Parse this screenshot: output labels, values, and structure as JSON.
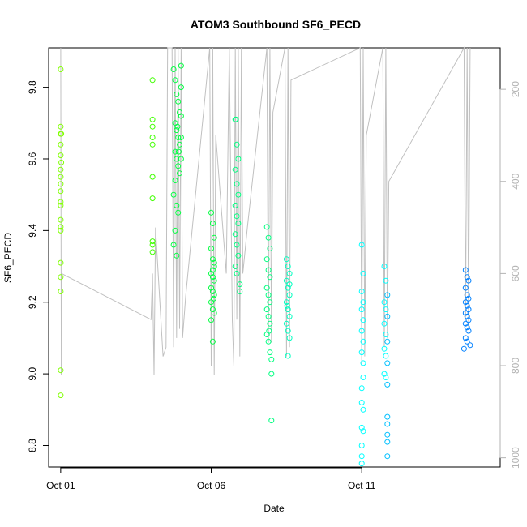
{
  "chart_data": {
    "type": "scatter",
    "title": "ATOM3 Southbound SF6_PECD",
    "xlabel": "Date",
    "ylabel": "SF6_PECD",
    "x_ticks": [
      {
        "day": 1,
        "label": "Oct 01"
      },
      {
        "day": 6,
        "label": "Oct 06"
      },
      {
        "day": 11,
        "label": "Oct 11"
      }
    ],
    "xlim_days": [
      0.6,
      15.6
    ],
    "ylim": [
      8.74,
      9.91
    ],
    "y_ticks": [
      "8.8",
      "9.0",
      "9.2",
      "9.4",
      "9.6",
      "9.8"
    ],
    "y2_ticks": [
      "200",
      "400",
      "600",
      "800",
      "1000"
    ],
    "y2lim": [
      1020,
      110
    ],
    "grid": false,
    "legend": "none",
    "colors": {
      "line": "#c0c0c0",
      "axis": "#000000",
      "right_axis": "#b3b3b3",
      "point_palette": [
        "#80ff00",
        "#40ff00",
        "#00ff40",
        "#00ff80",
        "#00ffc0",
        "#00ffff",
        "#00c0ff",
        "#0080ff"
      ]
    },
    "points": [
      [
        1.0,
        9.85
      ],
      [
        1.0,
        9.69
      ],
      [
        1.0,
        9.67
      ],
      [
        1.0,
        9.64
      ],
      [
        1.0,
        9.61
      ],
      [
        1.0,
        9.57
      ],
      [
        1.0,
        9.55
      ],
      [
        1.0,
        9.53
      ],
      [
        1.0,
        9.51
      ],
      [
        1.0,
        9.48
      ],
      [
        1.0,
        9.47
      ],
      [
        1.0,
        9.43
      ],
      [
        1.0,
        9.41
      ],
      [
        1.0,
        9.4
      ],
      [
        1.0,
        9.31
      ],
      [
        1.0,
        9.27
      ],
      [
        1.0,
        9.23
      ],
      [
        1.0,
        9.01
      ],
      [
        1.0,
        8.94
      ],
      [
        1.02,
        9.67
      ],
      [
        1.02,
        9.59
      ],
      [
        4.05,
        9.82
      ],
      [
        4.05,
        9.71
      ],
      [
        4.05,
        9.69
      ],
      [
        4.05,
        9.66
      ],
      [
        4.05,
        9.64
      ],
      [
        4.05,
        9.55
      ],
      [
        4.05,
        9.49
      ],
      [
        4.05,
        9.37
      ],
      [
        4.05,
        9.36
      ],
      [
        4.05,
        9.34
      ],
      [
        4.75,
        9.85
      ],
      [
        4.8,
        9.82
      ],
      [
        4.85,
        9.78
      ],
      [
        4.9,
        9.76
      ],
      [
        4.95,
        9.73
      ],
      [
        4.8,
        9.7
      ],
      [
        4.85,
        9.68
      ],
      [
        4.9,
        9.66
      ],
      [
        4.95,
        9.64
      ],
      [
        4.8,
        9.62
      ],
      [
        4.85,
        9.6
      ],
      [
        4.9,
        9.58
      ],
      [
        4.95,
        9.56
      ],
      [
        4.8,
        9.54
      ],
      [
        4.75,
        9.5
      ],
      [
        4.85,
        9.47
      ],
      [
        4.9,
        9.45
      ],
      [
        4.8,
        9.4
      ],
      [
        4.75,
        9.36
      ],
      [
        4.85,
        9.33
      ],
      [
        5.0,
        9.86
      ],
      [
        5.0,
        9.8
      ],
      [
        5.0,
        9.72
      ],
      [
        5.0,
        9.66
      ],
      [
        5.0,
        9.6
      ],
      [
        4.92,
        9.62
      ],
      [
        4.88,
        9.69
      ],
      [
        6.0,
        9.45
      ],
      [
        6.05,
        9.42
      ],
      [
        6.1,
        9.38
      ],
      [
        6.0,
        9.35
      ],
      [
        6.05,
        9.32
      ],
      [
        6.1,
        9.3
      ],
      [
        6.0,
        9.28
      ],
      [
        6.05,
        9.27
      ],
      [
        6.1,
        9.26
      ],
      [
        6.0,
        9.24
      ],
      [
        6.05,
        9.23
      ],
      [
        6.1,
        9.22
      ],
      [
        6.0,
        9.2
      ],
      [
        6.05,
        9.18
      ],
      [
        6.1,
        9.17
      ],
      [
        6.0,
        9.15
      ],
      [
        6.05,
        9.29
      ],
      [
        6.1,
        9.31
      ],
      [
        6.05,
        9.09
      ],
      [
        6.08,
        9.21
      ],
      [
        6.8,
        9.71
      ],
      [
        6.85,
        9.64
      ],
      [
        6.9,
        9.6
      ],
      [
        6.8,
        9.57
      ],
      [
        6.85,
        9.53
      ],
      [
        6.9,
        9.5
      ],
      [
        6.8,
        9.47
      ],
      [
        6.85,
        9.44
      ],
      [
        6.9,
        9.42
      ],
      [
        6.8,
        9.39
      ],
      [
        6.85,
        9.36
      ],
      [
        6.9,
        9.33
      ],
      [
        6.8,
        9.3
      ],
      [
        6.85,
        9.28
      ],
      [
        6.95,
        9.25
      ],
      [
        6.95,
        9.23
      ],
      [
        6.82,
        9.71
      ],
      [
        7.85,
        9.41
      ],
      [
        7.9,
        9.38
      ],
      [
        7.95,
        9.35
      ],
      [
        7.85,
        9.32
      ],
      [
        7.9,
        9.29
      ],
      [
        7.95,
        9.27
      ],
      [
        7.85,
        9.24
      ],
      [
        7.9,
        9.22
      ],
      [
        7.95,
        9.2
      ],
      [
        7.85,
        9.18
      ],
      [
        7.9,
        9.16
      ],
      [
        7.95,
        9.14
      ],
      [
        7.85,
        9.11
      ],
      [
        7.9,
        9.09
      ],
      [
        7.95,
        9.06
      ],
      [
        8.0,
        9.04
      ],
      [
        8.0,
        9.0
      ],
      [
        8.0,
        8.87
      ],
      [
        7.92,
        9.12
      ],
      [
        8.5,
        9.32
      ],
      [
        8.55,
        9.3
      ],
      [
        8.6,
        9.28
      ],
      [
        8.5,
        9.26
      ],
      [
        8.55,
        9.24
      ],
      [
        8.6,
        9.22
      ],
      [
        8.5,
        9.2
      ],
      [
        8.55,
        9.18
      ],
      [
        8.6,
        9.16
      ],
      [
        8.5,
        9.14
      ],
      [
        8.55,
        9.12
      ],
      [
        8.6,
        9.1
      ],
      [
        8.55,
        9.05
      ],
      [
        8.6,
        9.25
      ],
      [
        8.52,
        9.19
      ],
      [
        11.0,
        9.36
      ],
      [
        11.05,
        9.28
      ],
      [
        11.0,
        9.23
      ],
      [
        11.05,
        9.2
      ],
      [
        11.0,
        9.18
      ],
      [
        11.05,
        9.15
      ],
      [
        11.0,
        9.12
      ],
      [
        11.05,
        9.09
      ],
      [
        11.0,
        9.06
      ],
      [
        11.05,
        9.03
      ],
      [
        11.05,
        8.99
      ],
      [
        11.0,
        8.96
      ],
      [
        11.0,
        8.92
      ],
      [
        11.05,
        8.9
      ],
      [
        11.0,
        8.85
      ],
      [
        11.05,
        8.84
      ],
      [
        11.0,
        8.8
      ],
      [
        11.0,
        8.77
      ],
      [
        11.0,
        8.75
      ],
      [
        11.75,
        9.3
      ],
      [
        11.8,
        9.26
      ],
      [
        11.85,
        9.22
      ],
      [
        11.75,
        9.2
      ],
      [
        11.8,
        9.18
      ],
      [
        11.85,
        9.16
      ],
      [
        11.75,
        9.14
      ],
      [
        11.8,
        9.11
      ],
      [
        11.85,
        9.09
      ],
      [
        11.75,
        9.07
      ],
      [
        11.8,
        9.05
      ],
      [
        11.85,
        9.03
      ],
      [
        11.75,
        9.0
      ],
      [
        11.8,
        8.99
      ],
      [
        11.85,
        8.97
      ],
      [
        11.85,
        8.88
      ],
      [
        11.85,
        8.86
      ],
      [
        11.85,
        8.83
      ],
      [
        11.85,
        8.81
      ],
      [
        11.85,
        8.77
      ],
      [
        14.45,
        9.29
      ],
      [
        14.5,
        9.27
      ],
      [
        14.55,
        9.26
      ],
      [
        14.45,
        9.24
      ],
      [
        14.5,
        9.22
      ],
      [
        14.55,
        9.21
      ],
      [
        14.45,
        9.2
      ],
      [
        14.5,
        9.19
      ],
      [
        14.55,
        9.18
      ],
      [
        14.45,
        9.17
      ],
      [
        14.5,
        9.16
      ],
      [
        14.55,
        9.15
      ],
      [
        14.45,
        9.14
      ],
      [
        14.5,
        9.13
      ],
      [
        14.55,
        9.12
      ],
      [
        14.45,
        9.1
      ],
      [
        14.5,
        9.09
      ],
      [
        14.4,
        9.07
      ],
      [
        14.6,
        9.08
      ]
    ],
    "altitude_path": [
      [
        1.0,
        110
      ],
      [
        1.02,
        820
      ],
      [
        1.03,
        600
      ],
      [
        4.0,
        700
      ],
      [
        4.05,
        600
      ],
      [
        4.1,
        820
      ],
      [
        4.15,
        500
      ],
      [
        4.4,
        780
      ],
      [
        4.5,
        760
      ],
      [
        4.55,
        110
      ],
      [
        4.7,
        110
      ],
      [
        4.75,
        760
      ],
      [
        4.8,
        110
      ],
      [
        4.85,
        740
      ],
      [
        4.9,
        110
      ],
      [
        4.95,
        720
      ],
      [
        5.0,
        110
      ],
      [
        5.05,
        740
      ],
      [
        5.15,
        650
      ],
      [
        5.95,
        110
      ],
      [
        6.0,
        800
      ],
      [
        6.05,
        110
      ],
      [
        6.1,
        820
      ],
      [
        6.15,
        300
      ],
      [
        6.5,
        600
      ],
      [
        6.6,
        110
      ],
      [
        6.7,
        700
      ],
      [
        6.75,
        800
      ],
      [
        6.8,
        110
      ],
      [
        6.85,
        700
      ],
      [
        6.9,
        110
      ],
      [
        6.95,
        780
      ],
      [
        7.0,
        110
      ],
      [
        7.05,
        600
      ],
      [
        7.2,
        500
      ],
      [
        7.85,
        110
      ],
      [
        7.9,
        750
      ],
      [
        7.95,
        110
      ],
      [
        8.0,
        750
      ],
      [
        8.05,
        250
      ],
      [
        8.45,
        110
      ],
      [
        8.5,
        780
      ],
      [
        8.55,
        110
      ],
      [
        8.6,
        760
      ],
      [
        8.65,
        180
      ],
      [
        10.95,
        110
      ],
      [
        11.0,
        800
      ],
      [
        11.05,
        110
      ],
      [
        11.1,
        780
      ],
      [
        11.15,
        300
      ],
      [
        11.7,
        110
      ],
      [
        11.75,
        760
      ],
      [
        11.8,
        110
      ],
      [
        11.85,
        740
      ],
      [
        11.9,
        400
      ],
      [
        14.4,
        110
      ],
      [
        14.45,
        700
      ],
      [
        14.5,
        110
      ],
      [
        14.55,
        720
      ],
      [
        14.6,
        110
      ]
    ]
  }
}
